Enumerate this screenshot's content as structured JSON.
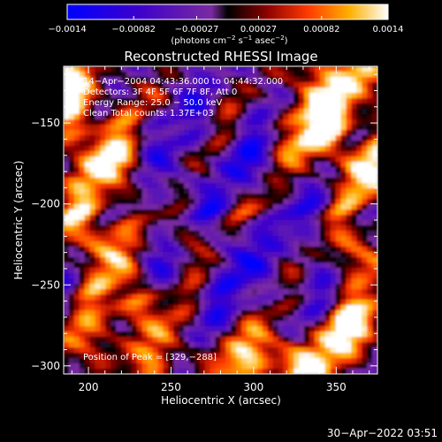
{
  "chart_data": {
    "type": "heatmap",
    "title": "Reconstructed RHESSI Image",
    "xlabel": "Heliocentric X (arcsec)",
    "ylabel": "Heliocentric Y (arcsec)",
    "xlim": [
      185,
      375
    ],
    "ylim": [
      -305,
      -115
    ],
    "x_ticks": [
      200,
      250,
      300,
      350
    ],
    "x_tick_labels": [
      "200",
      "250",
      "300",
      "350"
    ],
    "y_ticks": [
      -300,
      -250,
      -200,
      -150
    ],
    "y_tick_labels": [
      "−300",
      "−250",
      "−200",
      "−150"
    ],
    "colorbar": {
      "range": [
        -0.0014,
        0.0014
      ],
      "ticks": [
        -0.0014,
        -0.00082,
        -0.00027,
        0.00027,
        0.00082,
        0.0014
      ],
      "tick_labels": [
        "−0.0014",
        "−0.00082",
        "−0.00027",
        "0.00027",
        "0.00082",
        "0.0014"
      ],
      "unit_parts": [
        "(photons cm",
        "−2",
        " s",
        "−1",
        " asec",
        "−2",
        ")"
      ]
    },
    "annotations": [
      "14−Apr−2004 04:43:36.000 to 04:44:32.000",
      "Detectors: 3F 4F 5F 6F 7F 8F, Att 0",
      "Energy Range: 25.0 − 50.0 keV",
      "Clean     Total counts: 1.37E+03"
    ],
    "peak_label": "Position of Peak = [329,−288]",
    "grid": false
  },
  "footer": {
    "timestamp": "30−Apr−2022 03:51"
  }
}
